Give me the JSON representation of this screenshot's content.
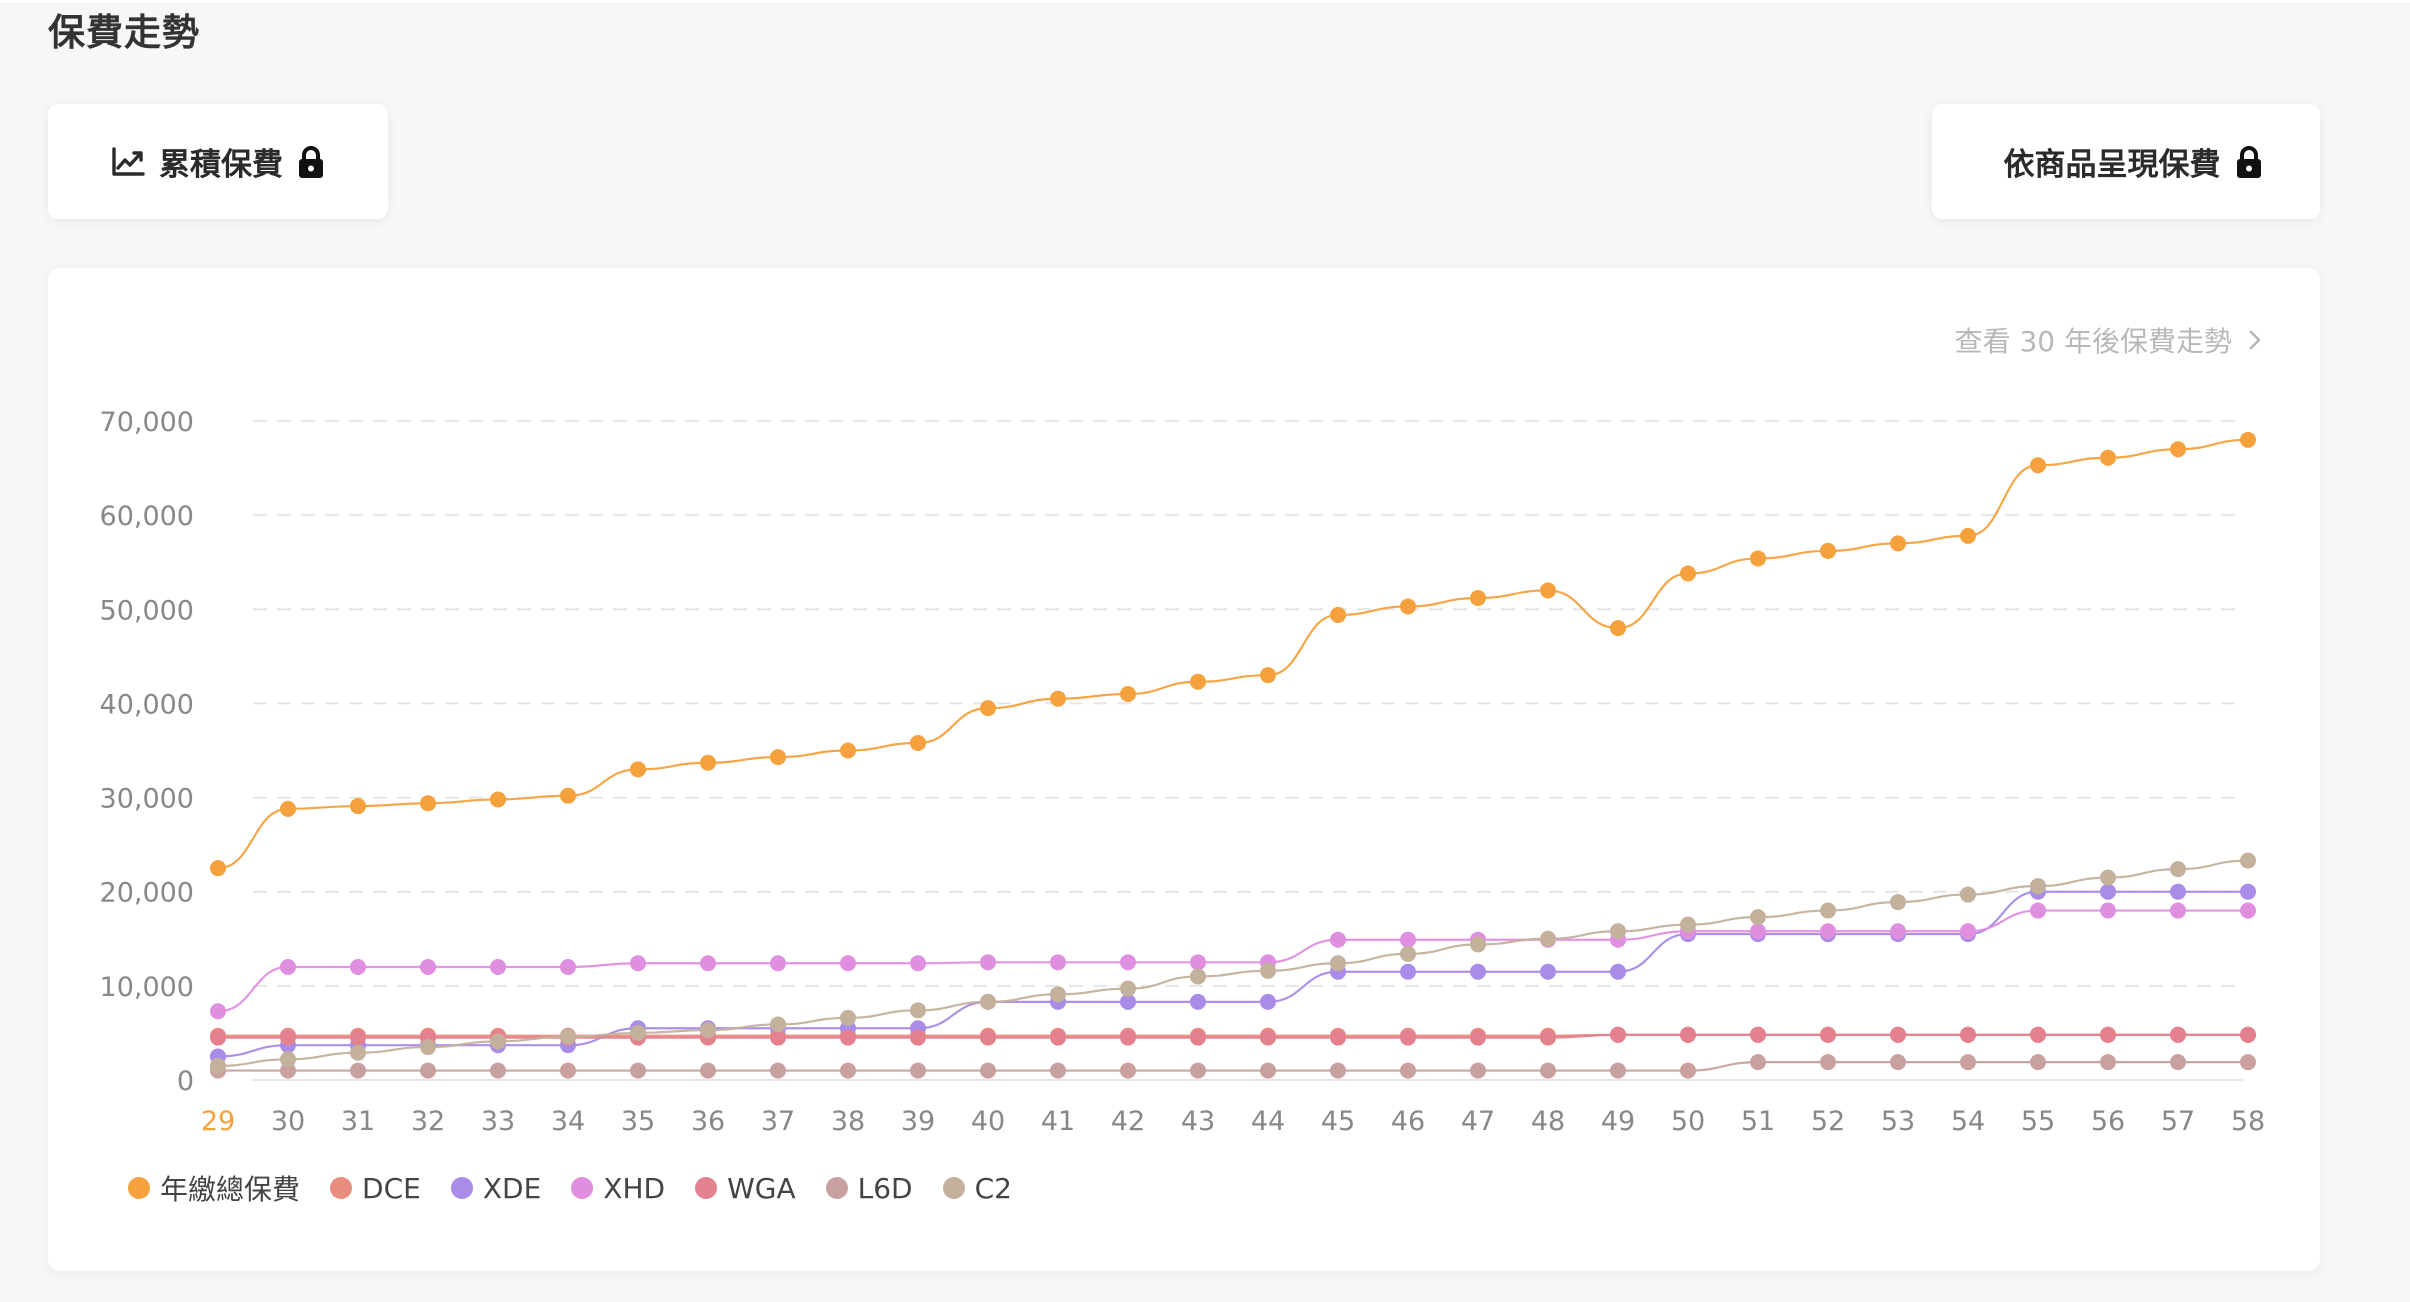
{
  "page": {
    "title": "保費走勢"
  },
  "tabs": {
    "cumulative_label": "累積保費",
    "by_product_label": "依商品呈現保費"
  },
  "links": {
    "future_trend": "查看 30 年後保費走勢"
  },
  "icons": {
    "trend": "chart-line-icon",
    "lock": "lock-icon",
    "chevron": "chevron-right-icon"
  },
  "colors": {
    "highlight_tick": "#f5a13d",
    "tick_label": "#888888",
    "grid": "#e6e6e6"
  },
  "chart_data": {
    "type": "line",
    "x": [
      29,
      30,
      31,
      32,
      33,
      34,
      35,
      36,
      37,
      38,
      39,
      40,
      41,
      42,
      43,
      44,
      45,
      46,
      47,
      48,
      49,
      50,
      51,
      52,
      53,
      54,
      55,
      56,
      57,
      58
    ],
    "highlight_x": 29,
    "ylim": [
      0,
      70000
    ],
    "y_ticks": [
      "0",
      "10,000",
      "20,000",
      "30,000",
      "40,000",
      "50,000",
      "60,000",
      "70,000"
    ],
    "grid": "horizontal dashed",
    "legend_position": "bottom-left",
    "series": [
      {
        "name": "年繳總保費",
        "color": "#f5a13d",
        "values": [
          22500,
          28800,
          29100,
          29400,
          29800,
          30200,
          33000,
          33700,
          34300,
          35000,
          35800,
          39500,
          40500,
          41000,
          42300,
          43000,
          49400,
          50300,
          51200,
          52000,
          48000,
          53800,
          55400,
          56200,
          57000,
          57800,
          65300,
          66100,
          67000,
          68000
        ]
      },
      {
        "name": "DCE",
        "color": "#e88c7d",
        "values": [
          4700,
          4700,
          4700,
          4700,
          4700,
          4700,
          4700,
          4700,
          4700,
          4700,
          4700,
          4700,
          4700,
          4700,
          4700,
          4700,
          4700,
          4700,
          4700,
          4700,
          4800,
          4800,
          4800,
          4800,
          4800,
          4800,
          4800,
          4800,
          4800,
          4800
        ]
      },
      {
        "name": "XDE",
        "color": "#a98be8",
        "values": [
          2500,
          3700,
          3700,
          3700,
          3700,
          3700,
          5500,
          5500,
          5500,
          5500,
          5500,
          8300,
          8300,
          8300,
          8300,
          8300,
          11500,
          11500,
          11500,
          11500,
          11500,
          15500,
          15500,
          15500,
          15500,
          15500,
          20000,
          20000,
          20000,
          20000
        ]
      },
      {
        "name": "XHD",
        "color": "#e08fe0",
        "values": [
          7300,
          12000,
          12000,
          12000,
          12000,
          12000,
          12400,
          12400,
          12400,
          12400,
          12400,
          12500,
          12500,
          12500,
          12500,
          12500,
          14900,
          14900,
          14900,
          14900,
          14900,
          15800,
          15800,
          15800,
          15800,
          15800,
          18000,
          18000,
          18000,
          18000
        ]
      },
      {
        "name": "WGA",
        "color": "#e3828e",
        "values": [
          4500,
          4500,
          4500,
          4500,
          4500,
          4500,
          4500,
          4500,
          4500,
          4500,
          4500,
          4500,
          4500,
          4500,
          4500,
          4500,
          4500,
          4500,
          4500,
          4500,
          4800,
          4800,
          4800,
          4800,
          4800,
          4800,
          4800,
          4800,
          4800,
          4800
        ]
      },
      {
        "name": "L6D",
        "color": "#c9a0a0",
        "values": [
          1000,
          1000,
          1000,
          1000,
          1000,
          1000,
          1000,
          1000,
          1000,
          1000,
          1000,
          1000,
          1000,
          1000,
          1000,
          1000,
          1000,
          1000,
          1000,
          1000,
          1000,
          1000,
          1900,
          1900,
          1900,
          1900,
          1900,
          1900,
          1900,
          1900
        ]
      },
      {
        "name": "C2",
        "color": "#c4b19c",
        "values": [
          1500,
          2200,
          2900,
          3500,
          4100,
          4600,
          5000,
          5300,
          5900,
          6600,
          7400,
          8300,
          9100,
          9700,
          11000,
          11600,
          12400,
          13400,
          14400,
          15000,
          15800,
          16500,
          17300,
          18000,
          18900,
          19700,
          20600,
          21500,
          22400,
          23300
        ]
      }
    ]
  }
}
